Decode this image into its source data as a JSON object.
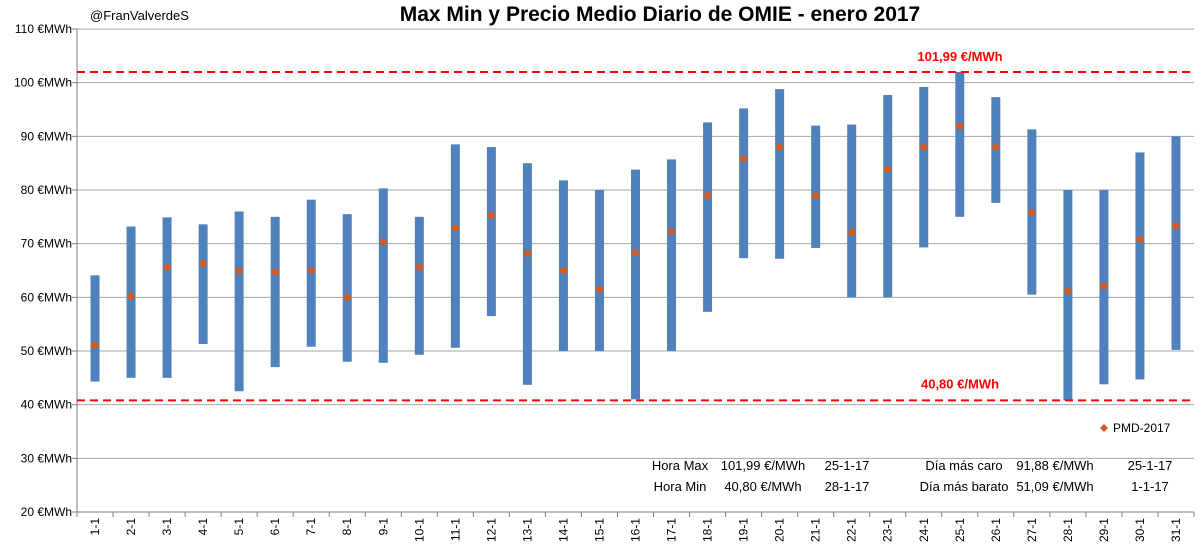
{
  "chart_data": {
    "type": "floating-bar-with-markers",
    "title": "Max Min y Precio Medio Diario de OMIE - enero 2017",
    "author_handle": "@FranValverdeS",
    "y_unit_suffix": "€MWh",
    "ylim": [
      20,
      110
    ],
    "yticks": [
      20,
      30,
      40,
      50,
      60,
      70,
      80,
      90,
      100,
      110
    ],
    "ytick_labels": [
      "20 €MWh",
      "30 €MWh",
      "40 €MWh",
      "50 €MWh",
      "60 €MWh",
      "70 €MWh",
      "80 €MWh",
      "90 €MWh",
      "100 €MWh",
      "110 €MWh"
    ],
    "grid": true,
    "categories": [
      "1-1",
      "2-1",
      "3-1",
      "4-1",
      "5-1",
      "6-1",
      "7-1",
      "8-1",
      "9-1",
      "10-1",
      "11-1",
      "12-1",
      "13-1",
      "14-1",
      "15-1",
      "16-1",
      "17-1",
      "18-1",
      "19-1",
      "20-1",
      "21-1",
      "22-1",
      "23-1",
      "24-1",
      "25-1",
      "26-1",
      "27-1",
      "28-1",
      "29-1",
      "30-1",
      "31-1"
    ],
    "series": [
      {
        "name": "Min",
        "values": [
          44.3,
          45.0,
          45.0,
          51.3,
          42.5,
          47.0,
          50.8,
          48.0,
          47.8,
          49.3,
          50.6,
          56.5,
          43.7,
          50.0,
          50.0,
          41.0,
          50.0,
          57.3,
          67.3,
          67.2,
          69.2,
          60.0,
          60.0,
          69.3,
          75.0,
          77.6,
          60.5,
          40.8,
          43.8,
          44.7,
          50.2
        ]
      },
      {
        "name": "Max",
        "values": [
          64.1,
          73.2,
          74.9,
          73.6,
          76.0,
          75.0,
          78.2,
          75.5,
          80.3,
          75.0,
          88.5,
          88.0,
          85.0,
          81.8,
          80.0,
          83.8,
          85.7,
          92.6,
          95.2,
          98.8,
          92.0,
          92.2,
          97.7,
          99.2,
          101.99,
          97.3,
          91.3,
          80.0,
          80.0,
          87.0,
          90.0
        ]
      },
      {
        "name": "PMD-2017",
        "values": [
          51.09,
          60.2,
          65.6,
          66.3,
          64.9,
          64.7,
          65.0,
          60.0,
          70.3,
          65.6,
          72.9,
          75.3,
          68.2,
          65.0,
          61.5,
          68.3,
          72.3,
          79.0,
          85.8,
          88.0,
          79.0,
          72.1,
          83.9,
          88.0,
          91.88,
          88.0,
          75.8,
          61.2,
          62.1,
          70.8,
          73.3
        ]
      }
    ],
    "reference_lines": [
      {
        "value": 101.99,
        "label": "101,99 €/MWh",
        "color": "#ff0000"
      },
      {
        "value": 40.8,
        "label": "40,80 €/MWh",
        "color": "#ff0000"
      }
    ],
    "legend": {
      "label": "PMD-2017",
      "position": "bottom-right"
    },
    "colors": {
      "bar": "#4f81bd",
      "marker": "#d55a1e",
      "grid": "#a6a6a6",
      "reference": "#ff0000",
      "axis": "#808080"
    },
    "annotations": {
      "rows": [
        [
          "Hora Max",
          "101,99 €/MWh",
          "25-1-17",
          "Día más caro",
          "91,88 €/MWh",
          "25-1-17"
        ],
        [
          "Hora Min",
          "40,80 €/MWh",
          "28-1-17",
          "Día más barato",
          "51,09 €/MWh",
          "1-1-17"
        ]
      ]
    }
  }
}
